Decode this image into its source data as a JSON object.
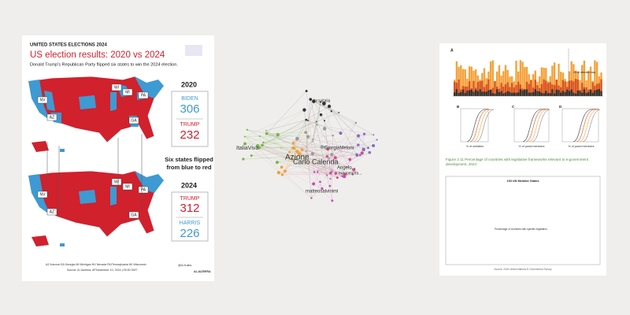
{
  "infographic": {
    "kicker": "UNITED STATES ELECTIONS 2024",
    "title": "US election results: 2020 vs 2024",
    "subtitle": "Donald Trump's Republican Party flipped six states to win the 2024 election.",
    "states": [
      "NV",
      "AZ",
      "WI",
      "MI",
      "PA",
      "GA"
    ],
    "result_2020": {
      "year": "2020",
      "first": "BIDEN",
      "first_votes": 306,
      "second": "TRUMP",
      "second_votes": 232
    },
    "flip_note": "Six states flipped from blue to red",
    "result_2024": {
      "year": "2024",
      "first": "TRUMP",
      "first_votes": 312,
      "second": "HARRIS",
      "second_votes": 226
    },
    "legend": "AZ Arizona   GA Georgia   MI Michigan   NV Nevada   PA Pennsylvania   WI Wisconsin",
    "source": "Source: Al Jazeera, AP",
    "date": "November 10, 2024 | 09:30 GMT",
    "handle": "@AJLabs",
    "brand": "ALJAZEERA"
  },
  "network": {
    "labels": [
      "ItaliaViva",
      "Azione",
      "Carlo Calenda",
      "GiorgiaMeloni",
      "matteosalvinimi",
      "Angelo...",
      "europeanfa...",
      "forzaitalia"
    ]
  },
  "figure": {
    "panels": [
      "A",
      "B",
      "C",
      "D"
    ],
    "event": "2016 election day",
    "axis_b": "% of websites",
    "axis_c": "% of panel members",
    "axis_d": "% of panel members",
    "caption": "Figure 2.11 Percentage of countries with legislative frameworks relevant to e-government development, 2024",
    "box_title": "193 UN Member States",
    "box_legend": "Percentage of countries with specific legislation",
    "source": "Source: 2024 United Nations E-Government Survey"
  }
}
